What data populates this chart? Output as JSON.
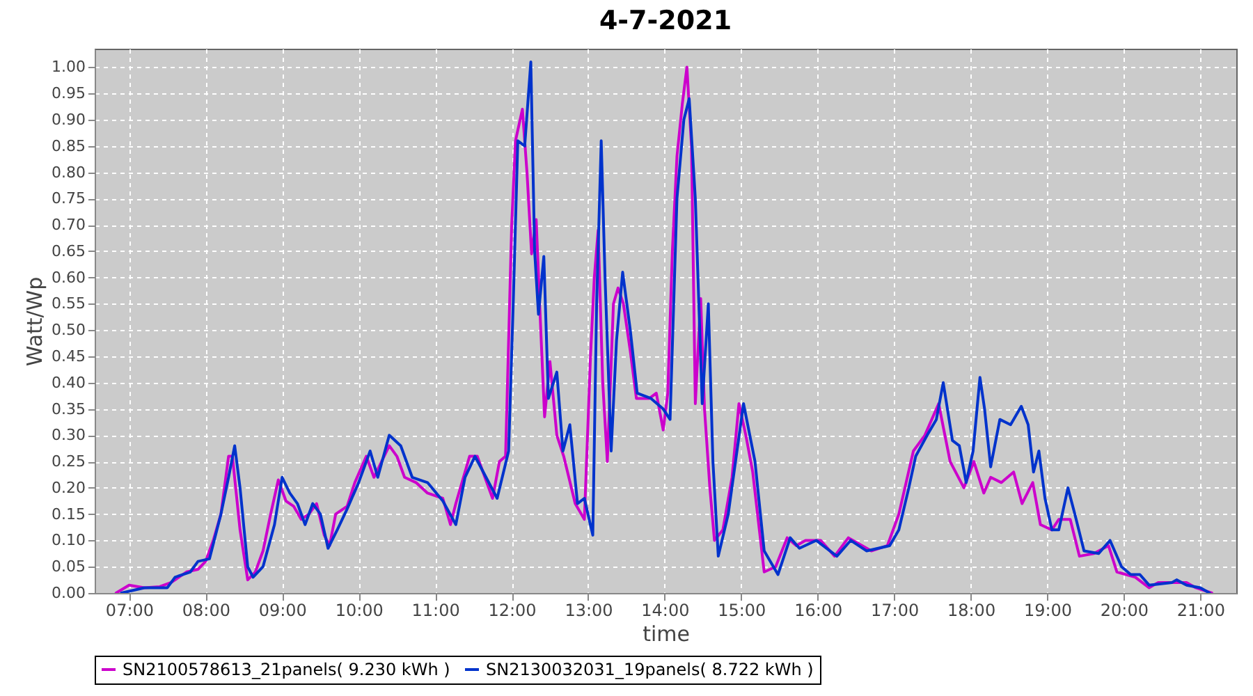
{
  "chart_data": {
    "type": "line",
    "title": "4-7-2021",
    "xlabel": "time",
    "ylabel": "Watt/Wp",
    "grid": true,
    "legend": "bottom",
    "line_style": "solid",
    "xlim": [
      6.55,
      21.47
    ],
    "ylim": [
      0,
      1.035
    ],
    "xticks": [
      {
        "value": 7,
        "label": "07:00"
      },
      {
        "value": 8,
        "label": "08:00"
      },
      {
        "value": 9,
        "label": "09:00"
      },
      {
        "value": 10,
        "label": "10:00"
      },
      {
        "value": 11,
        "label": "11:00"
      },
      {
        "value": 12,
        "label": "12:00"
      },
      {
        "value": 13,
        "label": "13:00"
      },
      {
        "value": 14,
        "label": "14:00"
      },
      {
        "value": 15,
        "label": "15:00"
      },
      {
        "value": 16,
        "label": "16:00"
      },
      {
        "value": 17,
        "label": "17:00"
      },
      {
        "value": 18,
        "label": "18:00"
      },
      {
        "value": 19,
        "label": "19:00"
      },
      {
        "value": 20,
        "label": "20:00"
      },
      {
        "value": 21,
        "label": "21:00"
      }
    ],
    "yticks": [
      {
        "value": 0,
        "label": "0.00"
      },
      {
        "value": 0.05,
        "label": "0.05"
      },
      {
        "value": 0.1,
        "label": "0.10"
      },
      {
        "value": 0.15,
        "label": "0.15"
      },
      {
        "value": 0.2,
        "label": "0.20"
      },
      {
        "value": 0.25,
        "label": "0.25"
      },
      {
        "value": 0.3,
        "label": "0.30"
      },
      {
        "value": 0.35,
        "label": "0.35"
      },
      {
        "value": 0.4,
        "label": "0.40"
      },
      {
        "value": 0.45,
        "label": "0.45"
      },
      {
        "value": 0.5,
        "label": "0.50"
      },
      {
        "value": 0.55,
        "label": "0.55"
      },
      {
        "value": 0.6,
        "label": "0.60"
      },
      {
        "value": 0.65,
        "label": "0.65"
      },
      {
        "value": 0.7,
        "label": "0.70"
      },
      {
        "value": 0.75,
        "label": "0.75"
      },
      {
        "value": 0.8,
        "label": "0.80"
      },
      {
        "value": 0.85,
        "label": "0.85"
      },
      {
        "value": 0.9,
        "label": "0.90"
      },
      {
        "value": 0.95,
        "label": "0.95"
      },
      {
        "value": 1,
        "label": "1.00"
      }
    ],
    "series": [
      {
        "name": "SN2100578613_21panels( 9.230 kWh )",
        "color": "#cc00cc",
        "x": [
          6.83,
          7.0,
          7.2,
          7.4,
          7.55,
          7.75,
          7.9,
          8.0,
          8.1,
          8.2,
          8.3,
          8.35,
          8.45,
          8.55,
          8.65,
          8.75,
          8.85,
          8.95,
          9.05,
          9.15,
          9.25,
          9.35,
          9.45,
          9.55,
          9.62,
          9.7,
          9.85,
          9.95,
          10.1,
          10.2,
          10.3,
          10.4,
          10.5,
          10.6,
          10.75,
          10.9,
          11.1,
          11.2,
          11.27,
          11.45,
          11.55,
          11.75,
          11.84,
          11.92,
          12.0,
          12.05,
          12.14,
          12.2,
          12.26,
          12.32,
          12.38,
          12.43,
          12.5,
          12.59,
          12.68,
          12.83,
          12.95,
          13.03,
          13.08,
          13.13,
          13.19,
          13.25,
          13.33,
          13.39,
          13.46,
          13.55,
          13.63,
          13.8,
          13.89,
          13.98,
          14.04,
          14.1,
          14.16,
          14.23,
          14.29,
          14.35,
          14.4,
          14.47,
          14.52,
          14.59,
          14.65,
          14.76,
          14.88,
          14.97,
          15.06,
          15.15,
          15.3,
          15.45,
          15.6,
          15.72,
          15.84,
          15.96,
          16.04,
          16.22,
          16.4,
          16.7,
          16.91,
          17.06,
          17.25,
          17.4,
          17.58,
          17.73,
          17.91,
          18.04,
          18.17,
          18.26,
          18.4,
          18.56,
          18.67,
          18.81,
          18.91,
          19.06,
          19.15,
          19.3,
          19.42,
          19.61,
          19.8,
          19.91,
          20.15,
          20.33,
          20.45,
          20.69,
          20.82,
          20.94,
          21.15
        ],
        "values": [
          0.0,
          0.015,
          0.01,
          0.012,
          0.02,
          0.04,
          0.045,
          0.06,
          0.1,
          0.15,
          0.26,
          0.26,
          0.12,
          0.025,
          0.04,
          0.08,
          0.15,
          0.215,
          0.175,
          0.165,
          0.14,
          0.15,
          0.17,
          0.11,
          0.09,
          0.15,
          0.165,
          0.21,
          0.26,
          0.22,
          0.25,
          0.28,
          0.26,
          0.22,
          0.21,
          0.19,
          0.18,
          0.13,
          0.17,
          0.26,
          0.26,
          0.18,
          0.25,
          0.26,
          0.7,
          0.86,
          0.92,
          0.8,
          0.645,
          0.71,
          0.5,
          0.335,
          0.44,
          0.3,
          0.26,
          0.17,
          0.14,
          0.45,
          0.6,
          0.69,
          0.4,
          0.25,
          0.55,
          0.58,
          0.55,
          0.46,
          0.37,
          0.37,
          0.38,
          0.31,
          0.38,
          0.65,
          0.83,
          0.93,
          1.0,
          0.85,
          0.36,
          0.56,
          0.35,
          0.2,
          0.1,
          0.12,
          0.22,
          0.36,
          0.3,
          0.23,
          0.04,
          0.05,
          0.105,
          0.09,
          0.1,
          0.1,
          0.1,
          0.07,
          0.105,
          0.08,
          0.09,
          0.15,
          0.27,
          0.3,
          0.36,
          0.25,
          0.2,
          0.25,
          0.19,
          0.22,
          0.21,
          0.23,
          0.17,
          0.21,
          0.13,
          0.12,
          0.14,
          0.14,
          0.07,
          0.075,
          0.09,
          0.04,
          0.03,
          0.01,
          0.02,
          0.02,
          0.02,
          0.01,
          0.0
        ]
      },
      {
        "name": "SN2130032031_19panels( 8.722 kWh )",
        "color": "#0033cc",
        "x": [
          6.9,
          7.05,
          7.2,
          7.5,
          7.6,
          7.8,
          7.9,
          8.05,
          8.2,
          8.3,
          8.38,
          8.45,
          8.55,
          8.62,
          8.75,
          8.9,
          9.0,
          9.1,
          9.2,
          9.3,
          9.4,
          9.5,
          9.6,
          9.72,
          9.85,
          10.0,
          10.15,
          10.25,
          10.4,
          10.55,
          10.7,
          10.9,
          11.1,
          11.27,
          11.39,
          11.52,
          11.81,
          11.96,
          12.02,
          12.08,
          12.17,
          12.25,
          12.3,
          12.35,
          12.42,
          12.48,
          12.59,
          12.67,
          12.76,
          12.86,
          12.95,
          13.06,
          13.11,
          13.17,
          13.22,
          13.3,
          13.37,
          13.45,
          13.55,
          13.64,
          13.82,
          13.98,
          14.07,
          14.16,
          14.25,
          14.32,
          14.4,
          14.49,
          14.57,
          14.63,
          14.7,
          14.83,
          15.03,
          15.18,
          15.3,
          15.48,
          15.64,
          15.76,
          15.98,
          16.25,
          16.43,
          16.64,
          16.94,
          17.06,
          17.19,
          17.28,
          17.43,
          17.55,
          17.64,
          17.76,
          17.85,
          17.94,
          18.03,
          18.12,
          18.18,
          18.26,
          18.38,
          18.52,
          18.66,
          18.75,
          18.82,
          18.89,
          18.97,
          19.06,
          19.15,
          19.27,
          19.36,
          19.48,
          19.67,
          19.82,
          19.97,
          20.09,
          20.21,
          20.33,
          20.63,
          20.69,
          20.82,
          21.0,
          21.12
        ],
        "values": [
          0.0,
          0.005,
          0.01,
          0.01,
          0.03,
          0.04,
          0.06,
          0.065,
          0.15,
          0.22,
          0.28,
          0.2,
          0.05,
          0.03,
          0.05,
          0.13,
          0.22,
          0.19,
          0.17,
          0.13,
          0.17,
          0.15,
          0.085,
          0.12,
          0.16,
          0.21,
          0.27,
          0.22,
          0.3,
          0.28,
          0.22,
          0.21,
          0.175,
          0.13,
          0.22,
          0.26,
          0.18,
          0.27,
          0.55,
          0.86,
          0.85,
          1.01,
          0.65,
          0.53,
          0.64,
          0.37,
          0.42,
          0.27,
          0.32,
          0.17,
          0.18,
          0.11,
          0.55,
          0.86,
          0.6,
          0.27,
          0.48,
          0.61,
          0.5,
          0.38,
          0.37,
          0.35,
          0.33,
          0.75,
          0.9,
          0.94,
          0.75,
          0.36,
          0.55,
          0.25,
          0.07,
          0.15,
          0.36,
          0.25,
          0.08,
          0.035,
          0.105,
          0.085,
          0.1,
          0.07,
          0.1,
          0.08,
          0.09,
          0.12,
          0.2,
          0.26,
          0.3,
          0.33,
          0.4,
          0.29,
          0.28,
          0.21,
          0.27,
          0.41,
          0.35,
          0.24,
          0.33,
          0.32,
          0.355,
          0.32,
          0.23,
          0.27,
          0.18,
          0.12,
          0.12,
          0.2,
          0.15,
          0.08,
          0.075,
          0.1,
          0.05,
          0.035,
          0.035,
          0.015,
          0.02,
          0.025,
          0.015,
          0.01,
          0.0
        ]
      }
    ]
  }
}
